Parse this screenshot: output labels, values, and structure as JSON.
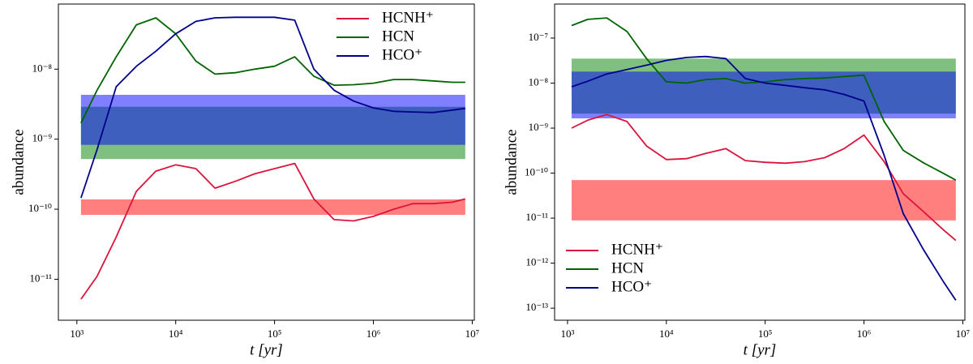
{
  "chart_data": [
    {
      "type": "line",
      "xscale": "log",
      "yscale": "log",
      "xlabel": "t [yr]",
      "ylabel": "abundance",
      "legend": "upper right",
      "xlim": [
        650,
        10500000
      ],
      "ylim": [
        2.6e-12,
        8.5e-08
      ],
      "xticks": [
        {
          "value": 1000,
          "label": "10³"
        },
        {
          "value": 10000,
          "label": "10⁴"
        },
        {
          "value": 100000,
          "label": "10⁵"
        },
        {
          "value": 1000000,
          "label": "10⁶"
        },
        {
          "value": 10000000,
          "label": "10⁷"
        }
      ],
      "yticks": [
        {
          "value": 1e-08,
          "label": "10⁻⁸"
        },
        {
          "value": 1e-09,
          "label": "10⁻⁹"
        },
        {
          "value": 1e-10,
          "label": "10⁻¹⁰"
        },
        {
          "value": 1e-11,
          "label": "10⁻¹¹"
        }
      ],
      "x": [
        1100,
        1600,
        2500,
        4000,
        6300,
        10000,
        16000,
        25000,
        40000,
        63000,
        100000,
        160000,
        250000,
        400000,
        630000,
        1000000,
        1600000,
        2500000,
        4000000,
        6300000,
        8500000
      ],
      "series": [
        {
          "name": "HCNH⁺",
          "color": "#dc143c",
          "band": [
            8.3e-11,
            1.38e-10
          ],
          "band_color": "#ff0000",
          "values": [
            5.2e-12,
            1.1e-11,
            4e-11,
            1.8e-10,
            3.5e-10,
            4.3e-10,
            3.8e-10,
            2e-10,
            2.5e-10,
            3.2e-10,
            3.8e-10,
            4.5e-10,
            1.4e-10,
            7.1e-11,
            6.8e-11,
            7.9e-11,
            1e-10,
            1.2e-10,
            1.2e-10,
            1.26e-10,
            1.4e-10
          ]
        },
        {
          "name": "HCN",
          "color": "#006400",
          "band": [
            5.2e-10,
            2.9e-09
          ],
          "band_color": "#008000",
          "values": [
            1.7e-09,
            5e-09,
            1.5e-08,
            4.3e-08,
            5.4e-08,
            3.2e-08,
            1.3e-08,
            8.5e-09,
            8.9e-09,
            1e-08,
            1.1e-08,
            1.5e-08,
            7.9e-09,
            5.9e-09,
            6e-09,
            6.3e-09,
            7.1e-09,
            7.1e-09,
            6.8e-09,
            6.5e-09,
            6.5e-09
          ]
        },
        {
          "name": "HCO⁺",
          "color": "#00008b",
          "band": [
            8.3e-10,
            4.3e-09
          ],
          "band_color": "#0000ff",
          "values": [
            1.45e-10,
            7.1e-10,
            5.6e-09,
            1.1e-08,
            1.8e-08,
            3.2e-08,
            4.8e-08,
            5.4e-08,
            5.5e-08,
            5.5e-08,
            5.5e-08,
            5e-08,
            1e-08,
            5e-09,
            3.5e-09,
            2.8e-09,
            2.5e-09,
            2.45e-09,
            2.4e-09,
            2.6e-09,
            2.75e-09
          ]
        }
      ]
    },
    {
      "type": "line",
      "xscale": "log",
      "yscale": "log",
      "xlabel": "t [yr]",
      "ylabel": "abundance",
      "legend": "lower left",
      "xlim": [
        740,
        10500000
      ],
      "ylim": [
        5.4e-14,
        5.7e-07
      ],
      "xticks": [
        {
          "value": 1000,
          "label": "10³"
        },
        {
          "value": 10000,
          "label": "10⁴"
        },
        {
          "value": 100000,
          "label": "10⁵"
        },
        {
          "value": 1000000,
          "label": "10⁶"
        },
        {
          "value": 10000000,
          "label": "10⁷"
        }
      ],
      "yticks": [
        {
          "value": 1e-07,
          "label": "10⁻⁷"
        },
        {
          "value": 1e-08,
          "label": "10⁻⁸"
        },
        {
          "value": 1e-09,
          "label": "10⁻⁹"
        },
        {
          "value": 1e-10,
          "label": "10⁻¹⁰"
        },
        {
          "value": 1e-11,
          "label": "10⁻¹¹"
        },
        {
          "value": 1e-12,
          "label": "10⁻¹²"
        },
        {
          "value": 1e-13,
          "label": "10⁻¹³"
        }
      ],
      "x": [
        1100,
        1600,
        2500,
        4000,
        6300,
        10000,
        16000,
        25000,
        40000,
        63000,
        100000,
        160000,
        250000,
        400000,
        630000,
        1000000,
        1600000,
        2500000,
        4000000,
        6300000,
        8500000
      ],
      "series": [
        {
          "name": "HCNH⁺",
          "color": "#dc143c",
          "band": [
            8.9e-12,
            7e-11
          ],
          "band_color": "#ff0000",
          "values": [
            1e-09,
            1.5e-09,
            2e-09,
            1.4e-09,
            4e-10,
            2e-10,
            2.1e-10,
            2.75e-10,
            3.5e-10,
            1.9e-10,
            1.74e-10,
            1.66e-10,
            1.8e-10,
            2.2e-10,
            3.5e-10,
            7e-10,
            1.8e-10,
            3.5e-11,
            1.4e-11,
            5.6e-12,
            3.2e-12
          ]
        },
        {
          "name": "HCN",
          "color": "#006400",
          "band": [
            2.1e-09,
            3.5e-08
          ],
          "band_color": "#008000",
          "values": [
            1.9e-07,
            2.6e-07,
            2.8e-07,
            1.4e-07,
            3.5e-08,
            1.07e-08,
            1e-08,
            1.2e-08,
            1.26e-08,
            1e-08,
            1.07e-08,
            1.2e-08,
            1.26e-08,
            1.3e-08,
            1.4e-08,
            1.5e-08,
            1.4e-09,
            3.2e-10,
            1.7e-10,
            1e-10,
            7e-11
          ]
        },
        {
          "name": "HCO⁺",
          "color": "#00008b",
          "band": [
            1.65e-09,
            1.8e-08
          ],
          "band_color": "#0000ff",
          "values": [
            8.3e-09,
            1.1e-08,
            1.6e-08,
            2e-08,
            2.5e-08,
            3.2e-08,
            3.7e-08,
            3.9e-08,
            3.5e-08,
            1.26e-08,
            1e-08,
            8.9e-09,
            7.9e-09,
            7.1e-09,
            5.6e-09,
            4e-09,
            2.5e-10,
            1.26e-11,
            2e-12,
            4e-13,
            1.5e-13
          ]
        }
      ]
    }
  ]
}
